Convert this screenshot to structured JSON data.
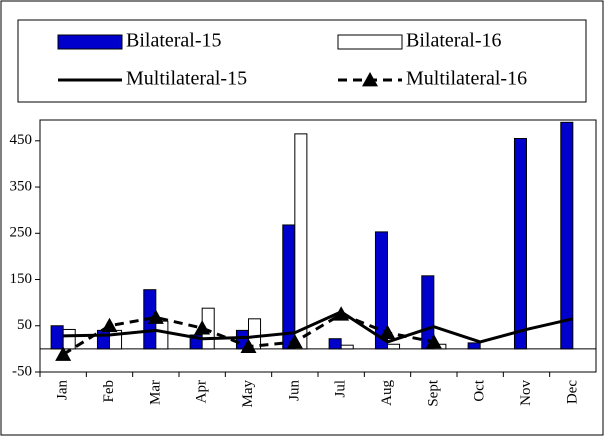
{
  "chart_data": {
    "type": "bar",
    "categories": [
      "Jan",
      "Feb",
      "Mar",
      "Apr",
      "May",
      "Jun",
      "Jul",
      "Aug",
      "Sept",
      "Oct",
      "Nov",
      "Dec"
    ],
    "series": [
      {
        "name": "Bilateral-15",
        "type": "bar",
        "color": "#0000cc",
        "values": [
          50,
          40,
          128,
          30,
          40,
          268,
          22,
          253,
          158,
          13,
          455,
          490
        ]
      },
      {
        "name": "Bilateral-16",
        "type": "bar",
        "color": "#ffffff",
        "values": [
          42,
          40,
          60,
          88,
          65,
          465,
          8,
          10,
          10,
          null,
          null,
          null
        ]
      },
      {
        "name": "Multilateral-15",
        "type": "line",
        "color": "#000000",
        "values": [
          28,
          30,
          40,
          22,
          25,
          35,
          80,
          15,
          48,
          15,
          42,
          65
        ]
      },
      {
        "name": "Multilateral-16",
        "type": "line",
        "dashed": true,
        "marker": "triangle",
        "color": "#000000",
        "values": [
          -12,
          50,
          68,
          45,
          5,
          15,
          75,
          35,
          15,
          null,
          null,
          null
        ]
      }
    ],
    "ylim": [
      -50,
      495
    ],
    "yticks": [
      -50,
      50,
      150,
      250,
      350,
      450
    ]
  }
}
